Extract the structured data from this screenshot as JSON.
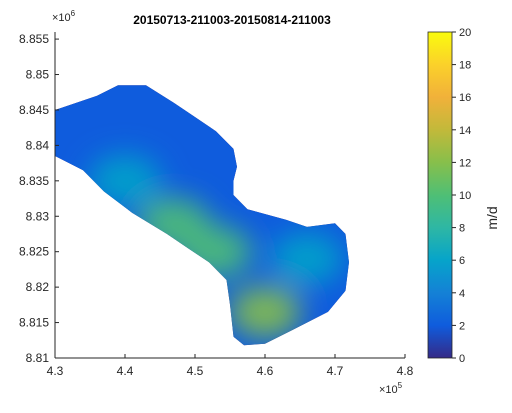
{
  "chart_data": {
    "type": "heatmap",
    "title": "20150713-211003-20150814-211003",
    "x_ticks": [
      "4.3",
      "4.4",
      "4.5",
      "4.6",
      "4.7",
      "4.8"
    ],
    "x_tick_values": [
      4.3,
      4.4,
      4.5,
      4.6,
      4.7,
      4.8
    ],
    "x_exponent": "×10",
    "x_exponent_power": "5",
    "y_ticks": [
      "8.81",
      "8.815",
      "8.82",
      "8.825",
      "8.83",
      "8.835",
      "8.84",
      "8.845",
      "8.85",
      "8.855"
    ],
    "y_tick_values": [
      8.81,
      8.815,
      8.82,
      8.825,
      8.83,
      8.835,
      8.84,
      8.845,
      8.85,
      8.855
    ],
    "y_exponent": "×10",
    "y_exponent_power": "6",
    "xlim": [
      4.3,
      4.8
    ],
    "ylim": [
      8.81,
      8.856
    ],
    "colorbar": {
      "label": "m/d",
      "ticks": [
        "0",
        "2",
        "4",
        "6",
        "8",
        "10",
        "12",
        "14",
        "16",
        "18",
        "20"
      ],
      "tick_values": [
        0,
        2,
        4,
        6,
        8,
        10,
        12,
        14,
        16,
        18,
        20
      ],
      "range": [
        0,
        20
      ],
      "colormap": "parula"
    },
    "grid": false,
    "glacier_outline": [
      [
        4.3,
        8.845
      ],
      [
        4.36,
        8.847
      ],
      [
        4.39,
        8.8485
      ],
      [
        4.43,
        8.8485
      ],
      [
        4.47,
        8.846
      ],
      [
        4.5,
        8.844
      ],
      [
        4.53,
        8.842
      ],
      [
        4.555,
        8.8395
      ],
      [
        4.56,
        8.837
      ],
      [
        4.555,
        8.835
      ],
      [
        4.555,
        8.833
      ],
      [
        4.575,
        8.831
      ],
      [
        4.63,
        8.8295
      ],
      [
        4.66,
        8.8285
      ],
      [
        4.7,
        8.829
      ],
      [
        4.715,
        8.8275
      ],
      [
        4.72,
        8.8235
      ],
      [
        4.715,
        8.8195
      ],
      [
        4.69,
        8.8165
      ],
      [
        4.64,
        8.814
      ],
      [
        4.6,
        8.812
      ],
      [
        4.57,
        8.8118
      ],
      [
        4.555,
        8.813
      ],
      [
        4.55,
        8.8175
      ],
      [
        4.545,
        8.821
      ],
      [
        4.52,
        8.8235
      ],
      [
        4.49,
        8.8255
      ],
      [
        4.46,
        8.8275
      ],
      [
        4.41,
        8.8305
      ],
      [
        4.37,
        8.8335
      ],
      [
        4.34,
        8.8365
      ],
      [
        4.3,
        8.8385
      ]
    ],
    "velocity_hotspots": [
      {
        "x": 4.6,
        "y": 8.8165,
        "value": 11
      },
      {
        "x": 4.53,
        "y": 8.825,
        "value": 10
      },
      {
        "x": 4.47,
        "y": 8.829,
        "value": 9
      },
      {
        "x": 4.4,
        "y": 8.835,
        "value": 5
      },
      {
        "x": 4.66,
        "y": 8.824,
        "value": 6
      }
    ],
    "background_value": 1.5,
    "edge_value": 0.5
  }
}
